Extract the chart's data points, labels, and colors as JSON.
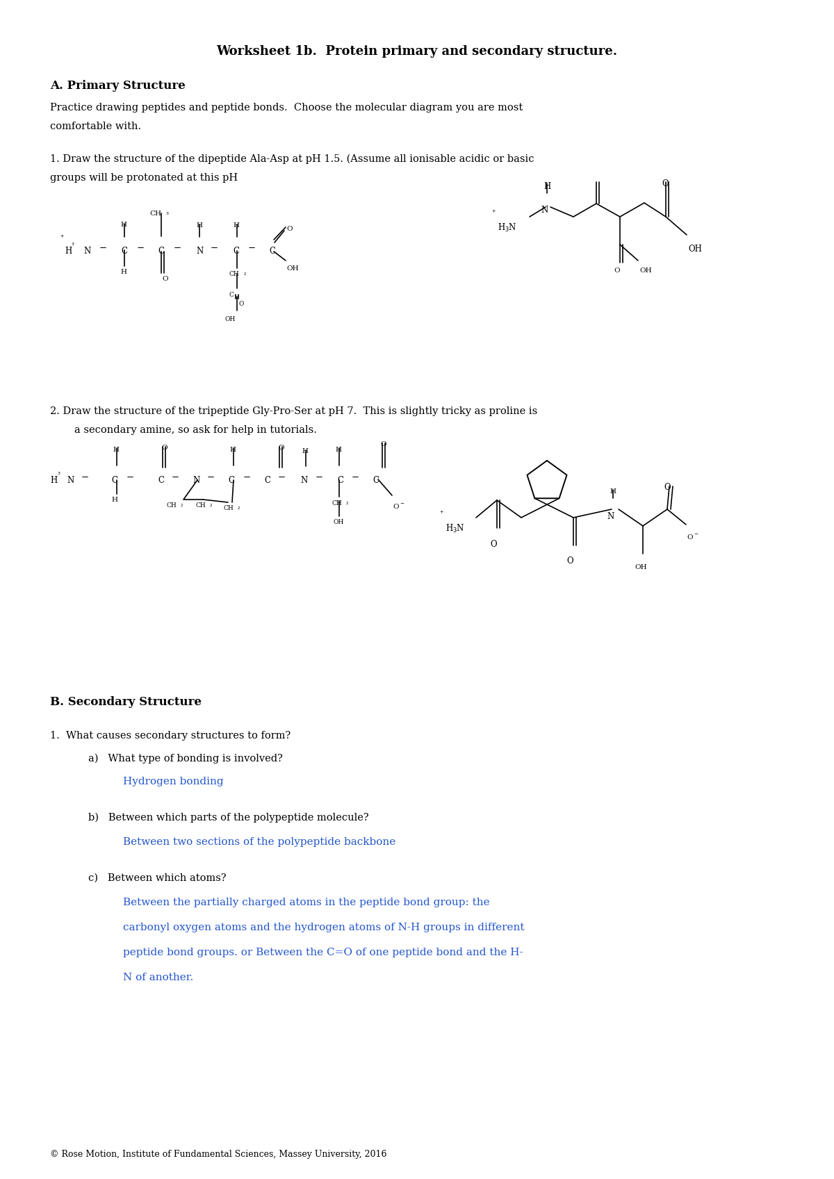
{
  "title": "Worksheet 1b.  Protein primary and secondary structure.",
  "bg_color": "#ffffff",
  "text_color": "#000000",
  "blue_color": "#2255CC",
  "section_a_title": "A. Primary Structure",
  "section_a_intro": "Practice drawing peptides and peptide bonds.  Choose the molecular diagram you are most\ncomfortable with.",
  "q1_text": "1. Draw the structure of the dipeptide Ala-Asp at pH 1.5. (Assume all ionisable acidic or basic\ngroups will be protonated at this pH",
  "q2_text": "2. Draw the structure of the tripeptide Gly-Pro-Ser at pH 7.  This is slightly tricky as proline is\n    a secondary amine, so ask for help in tutorials.",
  "section_b_title": "B. Secondary Structure",
  "q_secondary": "1.  What causes secondary structures to form?",
  "qa_label": "    a)   What type of bonding is involved?",
  "qa_answer": "         Hydrogen bonding",
  "qb_label": "    b)   Between which parts of the polypeptide molecule?",
  "qb_answer": "         Between two sections of the polypeptide backbone",
  "qc_label": "    c)   Between which atoms?",
  "qc_answer_1": "         Between the partially charged atoms in the peptide bond group: the",
  "qc_answer_2": "         carbonyl oxygen atoms and the hydrogen atoms of N-H groups in different",
  "qc_answer_3": "         peptide bond groups. or Between the C=O of one peptide bond and the H-",
  "qc_answer_4": "         N of another.",
  "footer": "© Rose Motion, Institute of Fundamental Sciences, Massey University, 2016",
  "page_width": 12.0,
  "page_height": 16.97
}
